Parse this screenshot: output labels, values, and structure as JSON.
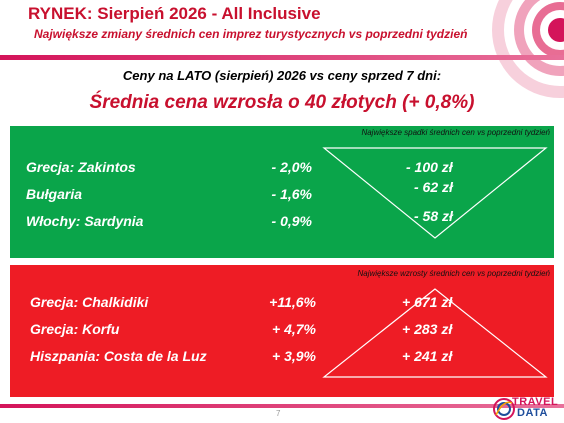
{
  "header": {
    "title": "RYNEK: Sierpień 2026 - All Inclusive",
    "subtitle": "Największe zmiany średnich cen imprez turystycznych vs poprzedni tydzień"
  },
  "summary": {
    "line1": "Ceny na LATO (sierpień) 2026 vs ceny sprzed 7 dni:",
    "line2": "Średnia cena wzrosła o 40 złotych (+ 0,8%)"
  },
  "decreases": {
    "caption": "Największe spadki średnich cen vs poprzedni tydzień",
    "color": "#0aa54a",
    "rows": [
      {
        "label": "Grecja: Zakintos",
        "pct": "- 2,0%",
        "amount": "- 100 zł"
      },
      {
        "label": "Bułgaria",
        "pct": "- 1,6%",
        "amount": "- 62 zł"
      },
      {
        "label": "Włochy: Sardynia",
        "pct": "- 0,9%",
        "amount": "- 58 zł"
      }
    ]
  },
  "increases": {
    "caption": "Największe wzrosty średnich cen vs poprzedni tydzień",
    "color": "#ee1c25",
    "rows": [
      {
        "label": "Grecja: Chalkidiki",
        "pct": "+11,6%",
        "amount": "+ 671 zł"
      },
      {
        "label": "Grecja: Korfu",
        "pct": "+ 4,7%",
        "amount": "+ 283 zł"
      },
      {
        "label": "Hiszpania: Costa de la Luz",
        "pct": "+ 3,9%",
        "amount": "+ 241 zł"
      }
    ]
  },
  "footer": {
    "page_number": "7",
    "logo_line1": "TRAVEL",
    "logo_line2": "DATA"
  }
}
